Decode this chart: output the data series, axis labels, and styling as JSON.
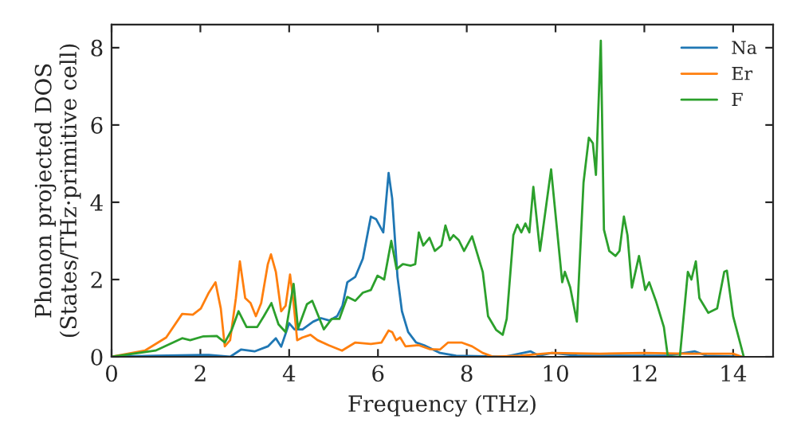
{
  "chart_data": {
    "type": "line",
    "xlabel": "Frequency (THz)",
    "ylabel": "Phonon projected DOS\n(States/THz·primitive cell)",
    "xlim": [
      0,
      14.9
    ],
    "ylim": [
      0,
      8.6
    ],
    "xticks": [
      0,
      2,
      4,
      6,
      8,
      10,
      12,
      14
    ],
    "yticks": [
      0,
      2,
      4,
      6,
      8
    ],
    "legend": "top right",
    "grid": false,
    "marker": "none",
    "line_style": "solid",
    "series": [
      {
        "name": "Na",
        "color": "#1f77b4",
        "x": [
          0,
          0.99,
          2.19,
          2.67,
          2.92,
          3.22,
          3.52,
          3.7,
          3.82,
          4.0,
          4.12,
          4.3,
          4.54,
          4.72,
          4.9,
          5.08,
          5.2,
          5.31,
          5.49,
          5.66,
          5.84,
          5.96,
          6.12,
          6.24,
          6.32,
          6.44,
          6.54,
          6.68,
          6.86,
          7.04,
          7.4,
          7.76,
          8.84,
          9.44,
          9.62,
          9.92,
          10.5,
          11.5,
          12.5,
          13.14,
          13.4,
          14.2
        ],
        "values": [
          0,
          0.03,
          0.05,
          0,
          0.19,
          0.14,
          0.27,
          0.48,
          0.26,
          0.87,
          0.71,
          0.71,
          0.91,
          1.0,
          0.94,
          1.05,
          1.32,
          1.93,
          2.07,
          2.54,
          3.63,
          3.56,
          3.22,
          4.76,
          4.1,
          2.07,
          1.18,
          0.64,
          0.37,
          0.3,
          0.1,
          0.03,
          0,
          0.14,
          0.03,
          0.1,
          0.03,
          0.03,
          0.03,
          0.14,
          0.03,
          0
        ]
      },
      {
        "name": "Er",
        "color": "#ff7f0e",
        "x": [
          0,
          0.75,
          1.23,
          1.59,
          1.83,
          2.01,
          2.19,
          2.34,
          2.46,
          2.55,
          2.67,
          2.8,
          2.89,
          3.01,
          3.13,
          3.25,
          3.37,
          3.52,
          3.59,
          3.7,
          3.82,
          3.92,
          4.02,
          4.1,
          4.18,
          4.3,
          4.48,
          4.64,
          4.89,
          5.19,
          5.49,
          5.84,
          6.08,
          6.24,
          6.32,
          6.41,
          6.5,
          6.62,
          6.92,
          7.16,
          7.4,
          7.58,
          7.88,
          8.12,
          8.36,
          8.6,
          9.2,
          9.92,
          11.0,
          12.0,
          13.0,
          14.0,
          14.2
        ],
        "values": [
          0,
          0.16,
          0.5,
          1.11,
          1.09,
          1.25,
          1.66,
          1.93,
          1.25,
          0.27,
          0.43,
          1.52,
          2.47,
          1.52,
          1.39,
          1.05,
          1.39,
          2.4,
          2.65,
          2.2,
          1.18,
          1.32,
          2.13,
          1.39,
          0.43,
          0.5,
          0.57,
          0.43,
          0.3,
          0.16,
          0.37,
          0.33,
          0.37,
          0.68,
          0.64,
          0.43,
          0.5,
          0.27,
          0.3,
          0.2,
          0.19,
          0.37,
          0.37,
          0.27,
          0.1,
          0,
          0.03,
          0.1,
          0.08,
          0.1,
          0.08,
          0.08,
          0
        ]
      },
      {
        "name": "F",
        "color": "#2ca02c",
        "x": [
          0,
          0.99,
          1.59,
          1.77,
          2.07,
          2.37,
          2.55,
          2.71,
          2.86,
          3.04,
          3.28,
          3.43,
          3.6,
          3.76,
          3.92,
          4.1,
          4.2,
          4.4,
          4.52,
          4.66,
          4.78,
          4.96,
          5.13,
          5.31,
          5.49,
          5.66,
          5.84,
          5.99,
          6.14,
          6.3,
          6.42,
          6.56,
          6.74,
          6.84,
          6.92,
          7.02,
          7.16,
          7.28,
          7.43,
          7.52,
          7.62,
          7.7,
          7.82,
          7.94,
          8.12,
          8.36,
          8.48,
          8.66,
          8.81,
          8.9,
          9.05,
          9.14,
          9.23,
          9.32,
          9.41,
          9.5,
          9.65,
          9.9,
          10.15,
          10.21,
          10.33,
          10.48,
          10.63,
          10.75,
          10.84,
          10.91,
          11.02,
          11.09,
          11.21,
          11.35,
          11.44,
          11.54,
          11.62,
          11.72,
          11.88,
          12.02,
          12.11,
          12.26,
          12.44,
          12.53,
          12.8,
          12.98,
          13.06,
          13.16,
          13.24,
          13.44,
          13.64,
          13.8,
          13.86,
          14.0,
          14.24
        ],
        "values": [
          0,
          0.16,
          0.48,
          0.43,
          0.53,
          0.54,
          0.37,
          0.71,
          1.18,
          0.77,
          0.77,
          1.05,
          1.39,
          0.84,
          0.64,
          1.89,
          0.73,
          1.36,
          1.45,
          1.05,
          0.71,
          0.98,
          0.98,
          1.55,
          1.45,
          1.66,
          1.73,
          2.1,
          2.0,
          3.0,
          2.27,
          2.4,
          2.36,
          2.4,
          3.22,
          2.88,
          3.08,
          2.74,
          2.88,
          3.4,
          3.02,
          3.15,
          3.02,
          2.74,
          3.12,
          2.2,
          1.05,
          0.7,
          0.57,
          0.98,
          3.15,
          3.42,
          3.22,
          3.45,
          3.22,
          4.4,
          2.74,
          4.85,
          1.93,
          2.2,
          1.8,
          0.91,
          4.51,
          5.67,
          5.53,
          4.71,
          8.18,
          3.29,
          2.74,
          2.61,
          2.74,
          3.63,
          3.15,
          1.79,
          2.61,
          1.73,
          1.93,
          1.45,
          0.77,
          0,
          0,
          2.2,
          2.0,
          2.47,
          1.52,
          1.14,
          1.25,
          2.2,
          2.23,
          1.05,
          0
        ]
      }
    ]
  }
}
